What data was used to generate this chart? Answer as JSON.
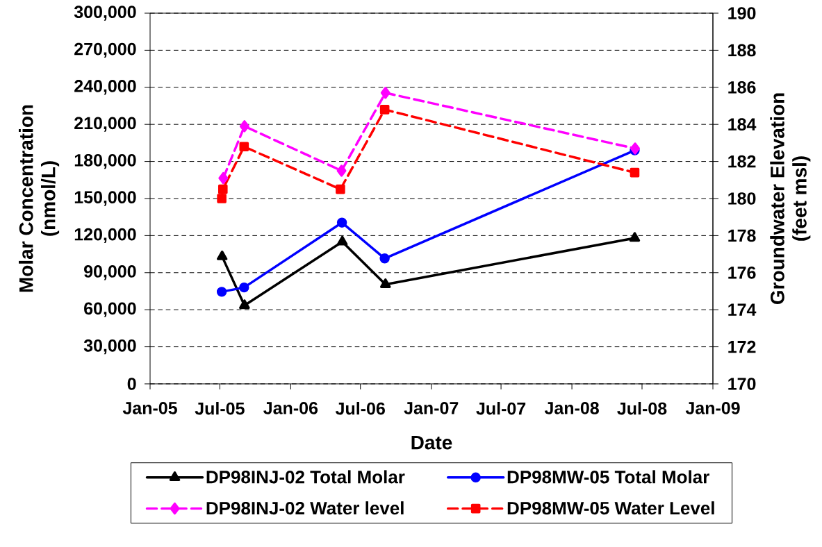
{
  "chart_data": {
    "type": "line",
    "xlabel": "Date",
    "ylabel": "Molar Concentration (nmol/L)",
    "y2label": "Groundwater Elevation (feet msl)",
    "xlim": [
      "2005-01-01",
      "2009-01-01"
    ],
    "xticks": [
      {
        "value": "2005-01-01",
        "label": "Jan-05"
      },
      {
        "value": "2005-07-01",
        "label": "Jul-05"
      },
      {
        "value": "2006-01-01",
        "label": "Jan-06"
      },
      {
        "value": "2006-07-01",
        "label": "Jul-06"
      },
      {
        "value": "2007-01-01",
        "label": "Jan-07"
      },
      {
        "value": "2007-07-01",
        "label": "Jul-07"
      },
      {
        "value": "2008-01-01",
        "label": "Jan-08"
      },
      {
        "value": "2008-07-01",
        "label": "Jul-08"
      },
      {
        "value": "2009-01-01",
        "label": "Jan-09"
      }
    ],
    "ylim": [
      0,
      300000
    ],
    "yticks": [
      0,
      {
        "value": 30000,
        "label": "30,000"
      },
      {
        "value": 60000,
        "label": "60,000"
      },
      {
        "value": 90000,
        "label": "90,000"
      },
      {
        "value": 120000,
        "label": "120,000"
      },
      {
        "value": 150000,
        "label": "150,000"
      },
      {
        "value": 180000,
        "label": "180,000"
      },
      {
        "value": 210000,
        "label": "210,000"
      },
      {
        "value": 240000,
        "label": "240,000"
      },
      {
        "value": 270000,
        "label": "270,000"
      },
      {
        "value": 300000,
        "label": "300,000"
      }
    ],
    "y2lim": [
      170,
      190
    ],
    "y2ticks": [
      170,
      172,
      174,
      176,
      178,
      180,
      182,
      184,
      186,
      188,
      190
    ],
    "grid": "y",
    "legend": "bottom",
    "series": [
      {
        "name": "DP98INJ-02 Total Molar",
        "color": "#000000",
        "marker": "triangle",
        "line_style": "solid",
        "axis": "y",
        "x": [
          "2005-07-07",
          "2005-09-03",
          "2006-05-15",
          "2006-09-04",
          "2008-06-12"
        ],
        "values": [
          103000,
          63500,
          115000,
          80500,
          118000
        ]
      },
      {
        "name": "DP98MW-05 Total Molar",
        "color": "#0000ff",
        "marker": "circle",
        "line_style": "solid",
        "axis": "y",
        "x": [
          "2005-07-06",
          "2005-09-02",
          "2006-05-14",
          "2006-09-02",
          "2008-06-12"
        ],
        "values": [
          74500,
          78000,
          130500,
          101500,
          189000
        ]
      },
      {
        "name": "DP98INJ-02 Water level",
        "color": "#ff00ff",
        "marker": "diamond",
        "line_style": "dashed",
        "axis": "y2",
        "x": [
          "2005-07-10",
          "2005-09-03",
          "2006-05-13",
          "2006-09-04",
          "2008-06-13"
        ],
        "values": [
          181.1,
          183.9,
          181.5,
          185.7,
          182.7
        ]
      },
      {
        "name": "DP98MW-05 Water Level",
        "color": "#ff0000",
        "marker": "square",
        "line_style": "dashed",
        "axis": "y2",
        "x": [
          "2005-07-06",
          "2005-07-09",
          "2005-09-02",
          "2006-05-10",
          "2006-09-02",
          "2008-06-12"
        ],
        "values": [
          180.0,
          180.5,
          182.8,
          180.5,
          184.8,
          181.4
        ]
      }
    ]
  }
}
